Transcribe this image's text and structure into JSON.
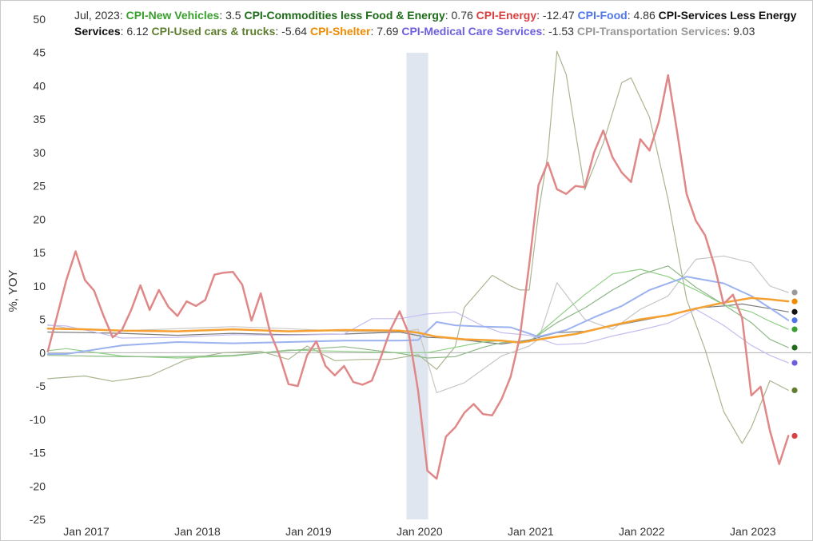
{
  "chart_data": {
    "type": "line",
    "header": {
      "date": "Jul, 2023"
    },
    "ylabel": "%, YOY",
    "ylim": [
      -25,
      50
    ],
    "x_start": "2016-11",
    "x_end": "2023-07",
    "x_ticks": [
      "Jan 2017",
      "Jan 2018",
      "Jan 2019",
      "Jan 2020",
      "Jan 2021",
      "Jan 2022",
      "Jan 2023"
    ],
    "y_ticks": [
      "-25",
      "-20",
      "-15",
      "-10",
      "-5",
      "0",
      "5",
      "10",
      "15",
      "20",
      "25",
      "30",
      "35",
      "40",
      "45",
      "50"
    ],
    "recession_band": {
      "from": "2020-02",
      "to": "2020-04",
      "color": "#dfe6ef"
    },
    "series": [
      {
        "name": "CPI-Transportation Services",
        "legend_value": "9.03",
        "color": "#999999",
        "line_color": "#c7c7c7",
        "width": 1.2,
        "x": [
          "2016-11",
          "2017-01",
          "2017-07",
          "2018-01",
          "2018-07",
          "2019-01",
          "2019-07",
          "2020-01",
          "2020-03",
          "2020-05",
          "2020-08",
          "2020-12",
          "2021-03",
          "2021-04",
          "2021-06",
          "2021-09",
          "2021-12",
          "2022-03",
          "2022-06",
          "2022-09",
          "2022-12",
          "2023-03",
          "2023-05",
          "2023-07"
        ],
        "y": [
          4.2,
          3.7,
          3.3,
          3.6,
          3.9,
          3.6,
          3.2,
          3.1,
          3.5,
          -6.0,
          -4.5,
          -0.5,
          1.0,
          2.0,
          10.5,
          5.0,
          3.5,
          6.5,
          8.5,
          14.0,
          14.5,
          13.5,
          10.0,
          9.03
        ]
      },
      {
        "name": "CPI-Services Less Energy Services",
        "legend_value": "6.12",
        "color": "#111111",
        "line_color": "#7a7a7a",
        "width": 1.2,
        "x": [
          "2016-11",
          "2017-07",
          "2018-01",
          "2018-07",
          "2019-01",
          "2019-07",
          "2020-01",
          "2020-04",
          "2020-06",
          "2020-12",
          "2021-03",
          "2021-06",
          "2021-09",
          "2021-12",
          "2022-03",
          "2022-06",
          "2022-09",
          "2022-12",
          "2023-02",
          "2023-05",
          "2023-07"
        ],
        "y": [
          3.1,
          2.9,
          2.6,
          2.9,
          2.7,
          2.8,
          3.1,
          2.3,
          2.2,
          1.3,
          1.9,
          3.0,
          3.2,
          4.0,
          4.8,
          5.6,
          6.7,
          7.0,
          7.3,
          6.6,
          6.12
        ]
      },
      {
        "name": "CPI-Used cars & trucks",
        "legend_value": "-5.64",
        "color": "#5e7e2e",
        "line_color": "#a9b58f",
        "width": 1.2,
        "x": [
          "2016-11",
          "2017-03",
          "2017-06",
          "2017-10",
          "2018-02",
          "2018-06",
          "2018-10",
          "2019-01",
          "2019-03",
          "2019-06",
          "2019-09",
          "2019-12",
          "2020-03",
          "2020-05",
          "2020-07",
          "2020-08",
          "2020-11",
          "2021-01",
          "2021-02",
          "2021-03",
          "2021-04",
          "2021-05",
          "2021-06",
          "2021-07",
          "2021-09",
          "2021-11",
          "2022-01",
          "2022-02",
          "2022-04",
          "2022-06",
          "2022-08",
          "2022-10",
          "2022-12",
          "2023-02",
          "2023-03",
          "2023-05",
          "2023-07"
        ],
        "y": [
          -3.9,
          -3.5,
          -4.3,
          -3.5,
          -1.0,
          0.0,
          0.2,
          -1.0,
          1.0,
          -1.2,
          -1.0,
          -1.0,
          -0.3,
          -2.5,
          0.9,
          6.8,
          11.6,
          10.0,
          9.4,
          9.4,
          21.0,
          29.7,
          45.2,
          41.7,
          24.4,
          31.4,
          40.5,
          41.2,
          35.3,
          23.0,
          8.0,
          0.5,
          -8.8,
          -13.6,
          -11.2,
          -4.2,
          -5.64
        ]
      },
      {
        "name": "CPI-New Vehicles",
        "legend_value": "3.5",
        "color": "#3aa12e",
        "line_color": "#8fcf85",
        "width": 1.2,
        "x": [
          "2016-11",
          "2017-01",
          "2017-07",
          "2018-01",
          "2018-07",
          "2019-01",
          "2019-07",
          "2020-01",
          "2020-04",
          "2020-07",
          "2020-10",
          "2020-12",
          "2021-03",
          "2021-06",
          "2021-09",
          "2021-12",
          "2022-03",
          "2022-06",
          "2022-09",
          "2022-12",
          "2023-03",
          "2023-05",
          "2023-07"
        ],
        "y": [
          0.3,
          0.6,
          -0.5,
          -0.8,
          -0.5,
          0.4,
          0.2,
          0.0,
          0.0,
          0.8,
          1.6,
          1.8,
          1.6,
          5.2,
          8.7,
          11.8,
          12.5,
          11.4,
          9.4,
          7.2,
          6.1,
          4.7,
          3.5
        ]
      },
      {
        "name": "CPI-Commodities less Food & Energy",
        "legend_value": "0.76",
        "color": "#1e6b19",
        "line_color": "#8cb886",
        "width": 1.2,
        "x": [
          "2016-11",
          "2017-07",
          "2018-01",
          "2018-07",
          "2019-01",
          "2019-07",
          "2020-01",
          "2020-04",
          "2020-07",
          "2020-10",
          "2020-12",
          "2021-03",
          "2021-06",
          "2021-09",
          "2021-12",
          "2022-03",
          "2022-06",
          "2022-09",
          "2022-12",
          "2023-03",
          "2023-05",
          "2023-07"
        ],
        "y": [
          -0.4,
          -0.6,
          -0.6,
          -0.4,
          0.3,
          0.9,
          -0.1,
          -0.8,
          -0.6,
          0.8,
          1.5,
          1.7,
          4.5,
          6.7,
          9.4,
          11.7,
          13.0,
          9.8,
          7.2,
          4.5,
          2.0,
          0.76
        ]
      },
      {
        "name": "CPI-Medical Care Services",
        "legend_value": "-1.53",
        "color": "#6d5ee0",
        "line_color": "#c3bdf0",
        "width": 1.2,
        "x": [
          "2016-11",
          "2017-01",
          "2017-07",
          "2018-01",
          "2018-07",
          "2019-01",
          "2019-07",
          "2019-10",
          "2020-01",
          "2020-04",
          "2020-07",
          "2020-10",
          "2020-12",
          "2021-03",
          "2021-06",
          "2021-09",
          "2021-12",
          "2022-03",
          "2022-06",
          "2022-09",
          "2022-12",
          "2023-03",
          "2023-05",
          "2023-07"
        ],
        "y": [
          4.1,
          4.0,
          2.2,
          2.3,
          2.7,
          2.6,
          2.8,
          5.1,
          5.1,
          5.8,
          6.1,
          4.0,
          3.0,
          2.6,
          1.2,
          1.4,
          2.5,
          3.4,
          4.4,
          6.5,
          4.1,
          1.1,
          -0.4,
          -1.53
        ]
      },
      {
        "name": "CPI-Food",
        "legend_value": "4.86",
        "color": "#4f76e8",
        "line_color": "#9cb2f0",
        "width": 2.0,
        "x": [
          "2016-11",
          "2017-01",
          "2017-07",
          "2018-01",
          "2018-07",
          "2019-01",
          "2019-07",
          "2020-01",
          "2020-03",
          "2020-05",
          "2020-07",
          "2020-10",
          "2021-01",
          "2021-04",
          "2021-07",
          "2021-10",
          "2022-01",
          "2022-04",
          "2022-07",
          "2022-08",
          "2022-10",
          "2022-12",
          "2023-03",
          "2023-05",
          "2023-07"
        ],
        "y": [
          -0.2,
          -0.2,
          1.1,
          1.6,
          1.4,
          1.6,
          1.8,
          1.8,
          1.9,
          4.6,
          4.1,
          3.9,
          3.8,
          2.4,
          3.4,
          5.3,
          7.0,
          9.4,
          10.9,
          11.4,
          10.9,
          10.4,
          8.5,
          6.7,
          4.86
        ]
      },
      {
        "name": "CPI-Shelter",
        "legend_value": "7.69",
        "color": "#f08a00",
        "line_color": "#f5a030",
        "width": 2.5,
        "x": [
          "2016-11",
          "2017-03",
          "2017-07",
          "2018-01",
          "2018-07",
          "2019-01",
          "2019-07",
          "2020-01",
          "2020-03",
          "2020-05",
          "2020-08",
          "2020-12",
          "2021-02",
          "2021-05",
          "2021-08",
          "2021-12",
          "2022-03",
          "2022-06",
          "2022-09",
          "2022-12",
          "2023-03",
          "2023-05",
          "2023-07"
        ],
        "y": [
          3.6,
          3.5,
          3.3,
          3.2,
          3.5,
          3.2,
          3.4,
          3.3,
          3.0,
          2.4,
          2.0,
          1.8,
          1.5,
          2.2,
          2.8,
          4.1,
          5.0,
          5.6,
          6.6,
          7.5,
          8.2,
          8.0,
          7.69
        ]
      },
      {
        "name": "CPI-Energy",
        "legend_value": "-12.47",
        "color": "#d94040",
        "line_color": "#e08888",
        "width": 2.5,
        "x": [
          "2016-11",
          "2016-12",
          "2017-01",
          "2017-02",
          "2017-03",
          "2017-04",
          "2017-05",
          "2017-06",
          "2017-07",
          "2017-08",
          "2017-09",
          "2017-10",
          "2017-11",
          "2017-12",
          "2018-01",
          "2018-02",
          "2018-03",
          "2018-04",
          "2018-05",
          "2018-06",
          "2018-07",
          "2018-08",
          "2018-09",
          "2018-10",
          "2018-11",
          "2018-12",
          "2019-01",
          "2019-02",
          "2019-03",
          "2019-04",
          "2019-05",
          "2019-06",
          "2019-07",
          "2019-08",
          "2019-09",
          "2019-10",
          "2019-11",
          "2019-12",
          "2020-01",
          "2020-02",
          "2020-03",
          "2020-04",
          "2020-05",
          "2020-06",
          "2020-07",
          "2020-08",
          "2020-09",
          "2020-10",
          "2020-11",
          "2020-12",
          "2021-01",
          "2021-02",
          "2021-03",
          "2021-04",
          "2021-05",
          "2021-06",
          "2021-07",
          "2021-08",
          "2021-09",
          "2021-10",
          "2021-11",
          "2021-12",
          "2022-01",
          "2022-02",
          "2022-03",
          "2022-04",
          "2022-05",
          "2022-06",
          "2022-07",
          "2022-08",
          "2022-09",
          "2022-10",
          "2022-11",
          "2022-12",
          "2023-01",
          "2023-02",
          "2023-03",
          "2023-04",
          "2023-05",
          "2023-06",
          "2023-07"
        ],
        "y": [
          0.2,
          5.5,
          10.9,
          15.2,
          10.9,
          9.3,
          5.6,
          2.3,
          3.4,
          6.4,
          10.1,
          6.4,
          9.4,
          6.9,
          5.5,
          7.7,
          7.0,
          7.9,
          11.7,
          12.0,
          12.1,
          10.2,
          4.8,
          8.9,
          3.1,
          -0.3,
          -4.7,
          -5.0,
          -0.4,
          1.7,
          -2.0,
          -3.4,
          -2.0,
          -4.4,
          -4.8,
          -4.2,
          -0.6,
          3.4,
          6.2,
          2.8,
          -5.7,
          -17.7,
          -18.9,
          -12.6,
          -11.2,
          -9.0,
          -7.7,
          -9.2,
          -9.4,
          -7.0,
          -3.6,
          2.4,
          13.2,
          25.1,
          28.5,
          24.5,
          23.8,
          25.0,
          24.8,
          30.0,
          33.3,
          29.3,
          27.0,
          25.6,
          32.0,
          30.3,
          34.6,
          41.6,
          32.9,
          23.8,
          19.8,
          17.6,
          13.1,
          7.3,
          8.7,
          5.2,
          -6.4,
          -5.1,
          -11.7,
          -16.7,
          -12.47
        ]
      }
    ]
  }
}
